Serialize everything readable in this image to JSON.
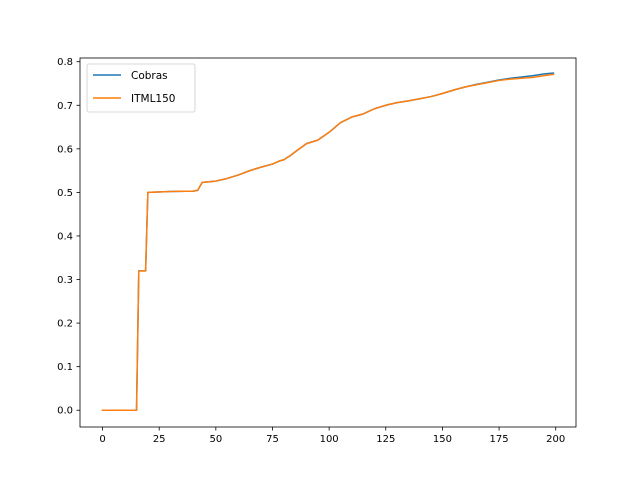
{
  "chart_data": {
    "type": "line",
    "title": "",
    "xlabel": "",
    "ylabel": "",
    "xlim": [
      -9.95,
      208.95
    ],
    "ylim": [
      -0.0385,
      0.8085
    ],
    "xticks": [
      0,
      25,
      50,
      75,
      100,
      125,
      150,
      175,
      200
    ],
    "yticks": [
      0.0,
      0.1,
      0.2,
      0.3,
      0.4,
      0.5,
      0.6,
      0.7,
      0.8
    ],
    "xtick_labels": [
      "0",
      "25",
      "50",
      "75",
      "100",
      "125",
      "150",
      "175",
      "200"
    ],
    "ytick_labels": [
      "0.0",
      "0.1",
      "0.2",
      "0.3",
      "0.4",
      "0.5",
      "0.6",
      "0.7",
      "0.8"
    ],
    "grid": false,
    "legend_position": "upper-left",
    "series": [
      {
        "name": "Cobras",
        "color": "#1f77b4",
        "x": [
          0,
          15,
          16,
          19,
          20,
          30,
          40,
          42,
          44,
          50,
          55,
          60,
          65,
          70,
          75,
          78,
          80,
          83,
          85,
          90,
          95,
          100,
          105,
          110,
          115,
          120,
          125,
          130,
          135,
          140,
          145,
          150,
          155,
          160,
          165,
          170,
          175,
          180,
          185,
          190,
          195,
          199
        ],
        "y": [
          0.0,
          0.0,
          0.32,
          0.32,
          0.5,
          0.502,
          0.503,
          0.505,
          0.523,
          0.526,
          0.532,
          0.54,
          0.55,
          0.558,
          0.565,
          0.572,
          0.575,
          0.585,
          0.593,
          0.612,
          0.62,
          0.638,
          0.66,
          0.673,
          0.68,
          0.692,
          0.7,
          0.706,
          0.71,
          0.715,
          0.72,
          0.727,
          0.735,
          0.742,
          0.748,
          0.753,
          0.758,
          0.762,
          0.765,
          0.768,
          0.772,
          0.774
        ]
      },
      {
        "name": "ITML150",
        "color": "#ff7f0e",
        "x": [
          0,
          15,
          16,
          19,
          20,
          30,
          40,
          42,
          44,
          50,
          55,
          60,
          65,
          70,
          75,
          78,
          80,
          83,
          85,
          90,
          95,
          100,
          105,
          110,
          115,
          120,
          125,
          130,
          135,
          140,
          145,
          150,
          155,
          160,
          165,
          170,
          175,
          180,
          185,
          190,
          195,
          199
        ],
        "y": [
          0.0,
          0.0,
          0.32,
          0.32,
          0.5,
          0.502,
          0.503,
          0.505,
          0.523,
          0.526,
          0.532,
          0.54,
          0.55,
          0.558,
          0.565,
          0.572,
          0.575,
          0.585,
          0.593,
          0.612,
          0.62,
          0.638,
          0.66,
          0.673,
          0.68,
          0.692,
          0.7,
          0.706,
          0.71,
          0.715,
          0.72,
          0.727,
          0.735,
          0.742,
          0.747,
          0.752,
          0.757,
          0.76,
          0.762,
          0.764,
          0.768,
          0.771
        ]
      }
    ]
  }
}
